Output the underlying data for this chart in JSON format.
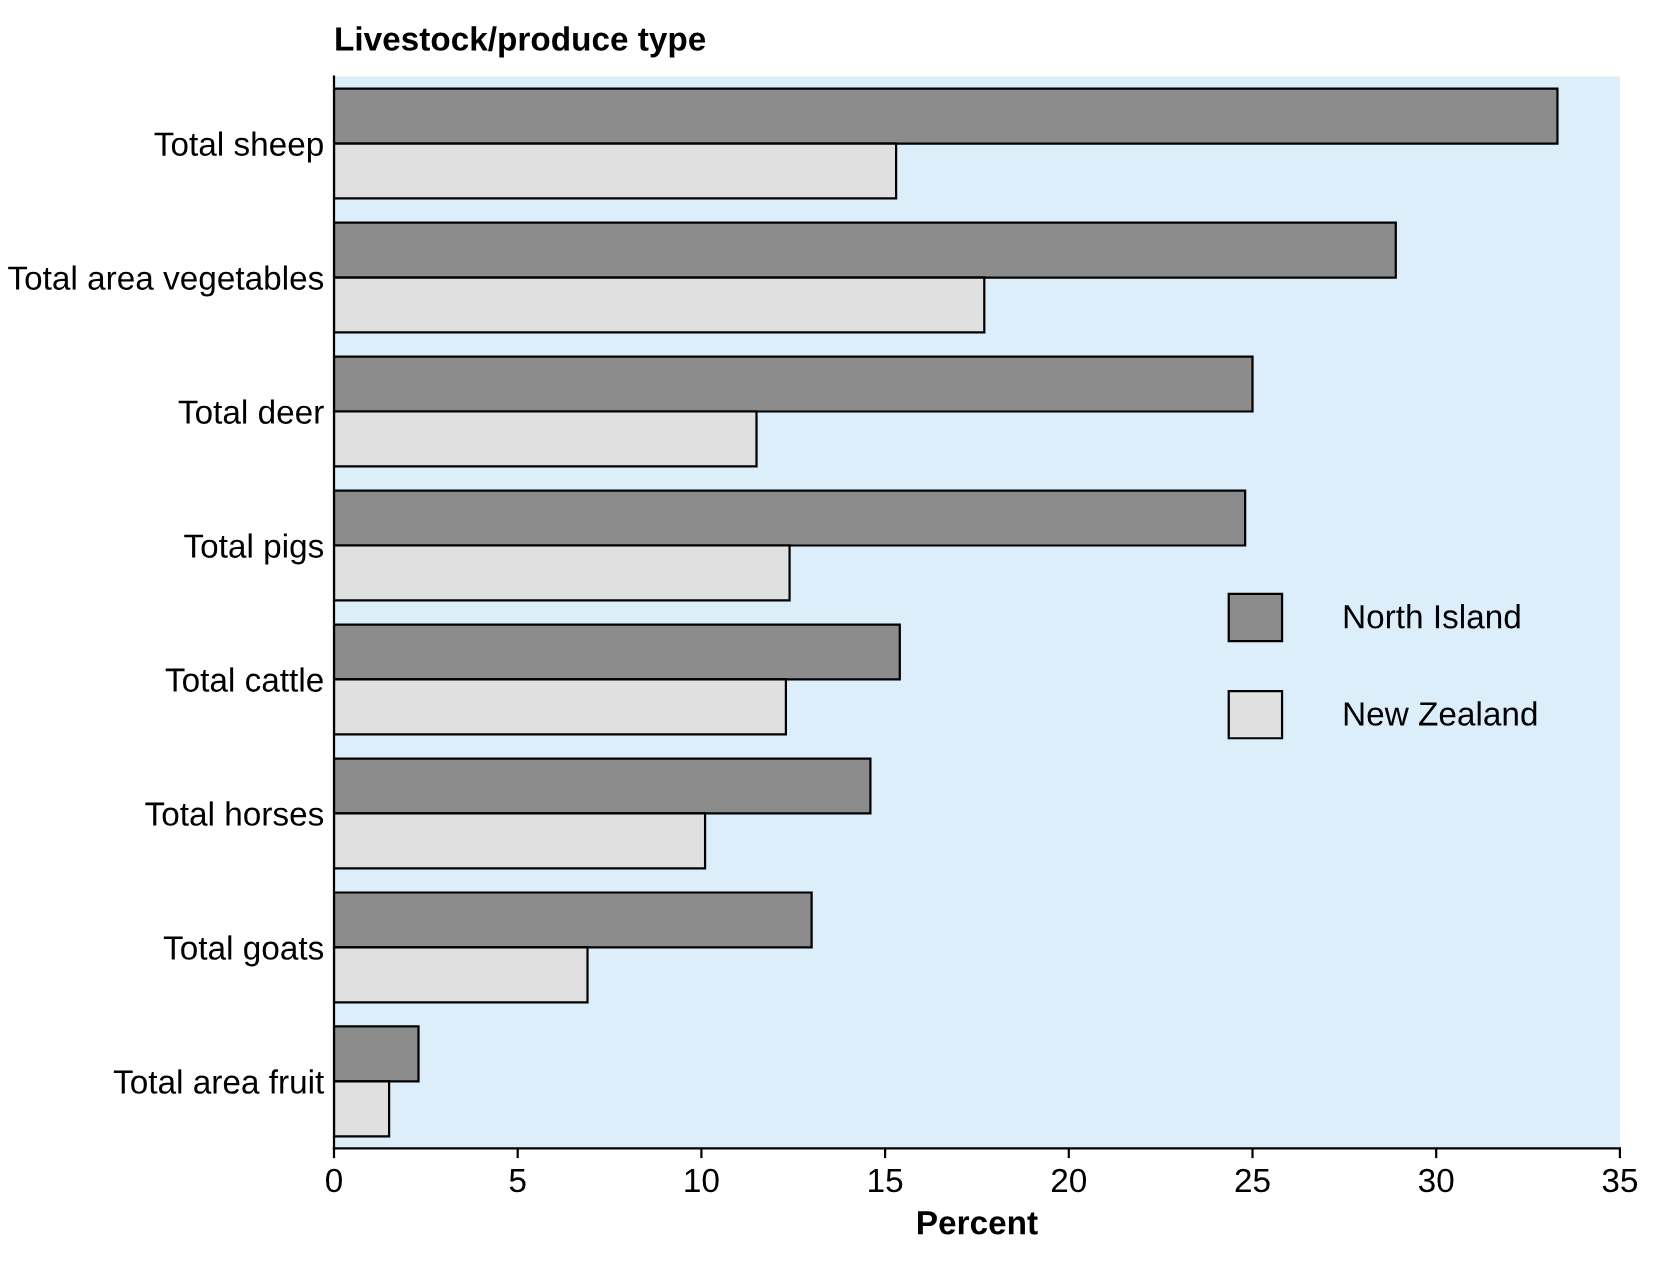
{
  "chart_data": {
    "type": "bar",
    "orientation": "horizontal",
    "ylabel": "Livestock/produce type",
    "xlabel": "Percent",
    "categories": [
      "Total sheep",
      "Total area vegetables",
      "Total deer",
      "Total pigs",
      "Total cattle",
      "Total horses",
      "Total goats",
      "Total area fruit"
    ],
    "series": [
      {
        "name": "North Island",
        "color": "#8c8c8c",
        "values": [
          33.3,
          28.9,
          25.0,
          24.8,
          15.4,
          14.6,
          13.0,
          2.3
        ]
      },
      {
        "name": "New Zealand",
        "color": "#e0e0e0",
        "values": [
          15.3,
          17.7,
          11.5,
          12.4,
          12.3,
          10.1,
          6.9,
          1.5
        ]
      }
    ],
    "xlim": [
      0,
      35
    ],
    "xticks": [
      0,
      5,
      10,
      15,
      20,
      25,
      30,
      35
    ],
    "grid": false,
    "legend": "right"
  }
}
